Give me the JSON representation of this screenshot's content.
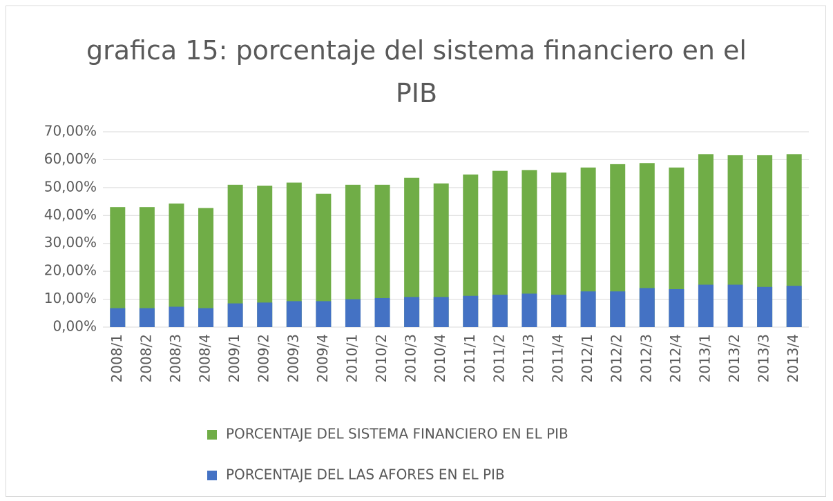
{
  "chart_data": {
    "type": "bar",
    "title": "grafica 15: porcentaje del sistema financiero en el PIB",
    "categories": [
      "2008/1",
      "2008/2",
      "2008/3",
      "2008/4",
      "2009/1",
      "2009/2",
      "2009/3",
      "2009/4",
      "2010/1",
      "2010/2",
      "2010/3",
      "2010/4",
      "2011/1",
      "2011/2",
      "2011/3",
      "2011/4",
      "2012/1",
      "2012/2",
      "2012/3",
      "2012/4",
      "2013/1",
      "2013/2",
      "2013/3",
      "2013/4"
    ],
    "series": [
      {
        "name": "PORCENTAJE DEL SISTEMA FINANCIERO EN EL PIB",
        "color": "#70ad47",
        "values": [
          43,
          43,
          44.3,
          42.7,
          51,
          50.7,
          51.8,
          47.8,
          51,
          51,
          53.5,
          51.5,
          54.7,
          56,
          56.3,
          55.4,
          57.2,
          58.4,
          58.8,
          57.2,
          62,
          61.6,
          61.6,
          62
        ]
      },
      {
        "name": "PORCENTAJE DEL LAS AFORES EN EL PIB",
        "color": "#4472c4",
        "values": [
          6.8,
          6.8,
          7.3,
          6.8,
          8.5,
          8.8,
          9.3,
          9.3,
          10,
          10.4,
          10.8,
          10.8,
          11.2,
          11.6,
          12,
          11.6,
          12.8,
          12.8,
          14,
          13.6,
          15.2,
          15.2,
          14.4,
          14.8
        ]
      }
    ],
    "ylim": [
      0,
      70
    ],
    "yticks": [
      {
        "value": 0,
        "label": "0,00%"
      },
      {
        "value": 10,
        "label": "10,00%"
      },
      {
        "value": 20,
        "label": "20,00%"
      },
      {
        "value": 30,
        "label": "30,00%"
      },
      {
        "value": 40,
        "label": "40,00%"
      },
      {
        "value": 50,
        "label": "50,00%"
      },
      {
        "value": 60,
        "label": "60,00%"
      },
      {
        "value": 70,
        "label": "70,00%"
      }
    ],
    "grid": true
  }
}
